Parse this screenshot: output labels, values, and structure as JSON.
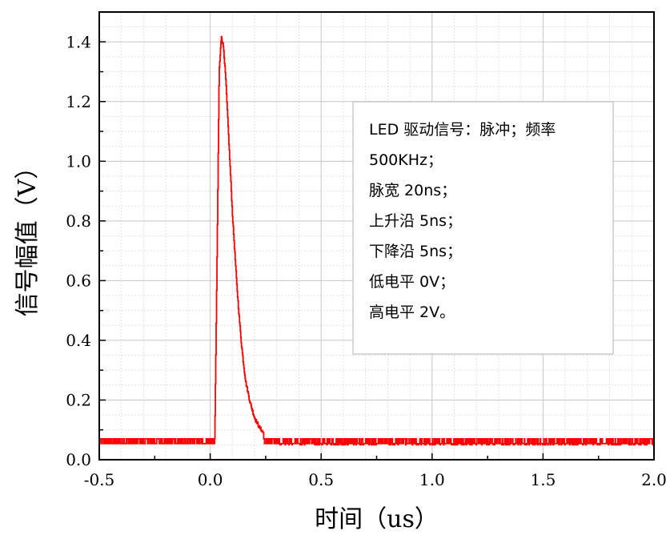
{
  "chart_data": {
    "type": "line",
    "xlabel": "时间（us）",
    "ylabel": "信号幅值（V）",
    "xlim": [
      -0.5,
      2.0
    ],
    "ylim": [
      0.0,
      1.5
    ],
    "xticks": [
      "-0.5",
      "0.0",
      "0.5",
      "1.0",
      "1.5",
      "2.0"
    ],
    "yticks": [
      "0.0",
      "0.2",
      "0.4",
      "0.6",
      "0.8",
      "1.0",
      "1.2",
      "1.4"
    ],
    "grid": true,
    "colors": {
      "series": "#ff0000",
      "axis": "#000000",
      "grid": "#c8c8c8"
    },
    "annotation": {
      "position": "upper-right",
      "lines": [
        "LED  驱动信号：脉冲；频率",
        "500KHz；",
        "脉宽 20ns；",
        "上升沿 5ns；",
        "下降沿 5ns；",
        "低电平 0V；",
        "高电平 2V。"
      ]
    },
    "series": [
      {
        "noise_band": [
          0.05,
          0.07
        ],
        "x": [
          -0.5,
          0.02,
          0.03,
          0.04,
          0.05,
          0.06,
          0.07,
          0.08,
          0.09,
          0.1,
          0.11,
          0.12,
          0.13,
          0.14,
          0.15,
          0.16,
          0.18,
          0.2,
          0.22,
          0.24,
          0.26,
          0.28,
          0.3,
          0.33,
          0.36,
          0.4,
          2.0
        ],
        "values": [
          0.06,
          0.06,
          0.65,
          1.3,
          1.42,
          1.38,
          1.27,
          1.12,
          0.97,
          0.82,
          0.7,
          0.58,
          0.48,
          0.39,
          0.32,
          0.26,
          0.19,
          0.14,
          0.11,
          0.09,
          0.08,
          0.075,
          0.07,
          0.06,
          0.06,
          0.06,
          0.06
        ]
      }
    ]
  }
}
